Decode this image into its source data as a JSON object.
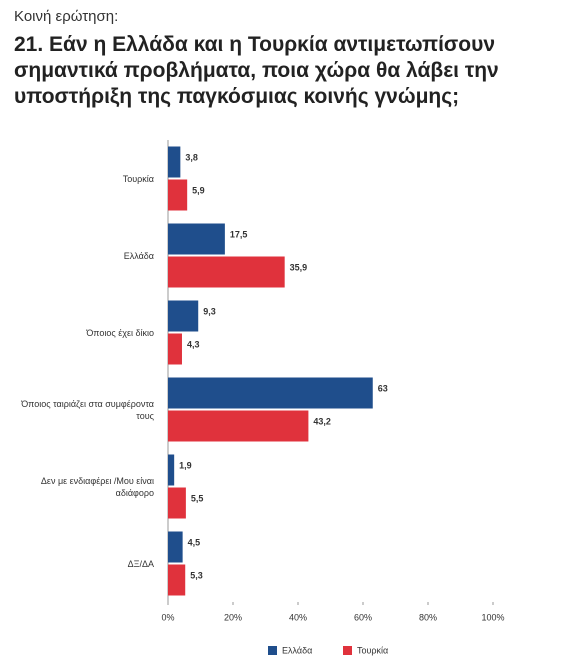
{
  "chart_data": {
    "type": "hbar",
    "subtitle": "Κοινή ερώτηση:",
    "title": "21. Εάν η Ελλάδα και η Τουρκία αντιμετωπίσουν σημαντικά προβλήματα, ποια χώρα θα λάβει την υποστήριξη της παγκόσμιας κοινής γνώμης;",
    "categories": [
      "Τουρκία",
      "Ελλάδα",
      "Όποιος έχει δίκιο",
      "Όποιος ταιριάζει στα συμφέροντα τους",
      "Δεν με ενδιαφέρει /Μου είναι αδιάφορο",
      "ΔΞ/ΔΑ"
    ],
    "series": [
      {
        "name": "Ελλάδα",
        "color": "#1f4e8c",
        "values": [
          3.8,
          17.5,
          9.3,
          63,
          1.9,
          4.5
        ],
        "value_labels": [
          "3,8",
          "17,5",
          "9,3",
          "63",
          "1,9",
          "4,5"
        ]
      },
      {
        "name": "Τουρκία",
        "color": "#e0323c",
        "values": [
          5.9,
          35.9,
          4.3,
          43.2,
          5.5,
          5.3
        ],
        "value_labels": [
          "5,9",
          "35,9",
          "4,3",
          "43,2",
          "5,5",
          "5,3"
        ]
      }
    ],
    "xlim": [
      0,
      100
    ],
    "xticks": [
      {
        "value": 0,
        "label": "0%"
      },
      {
        "value": 20,
        "label": "20%"
      },
      {
        "value": 40,
        "label": "40%"
      },
      {
        "value": 60,
        "label": "60%"
      },
      {
        "value": 80,
        "label": "80%"
      },
      {
        "value": 100,
        "label": "100%"
      }
    ],
    "legend": "bottom"
  }
}
